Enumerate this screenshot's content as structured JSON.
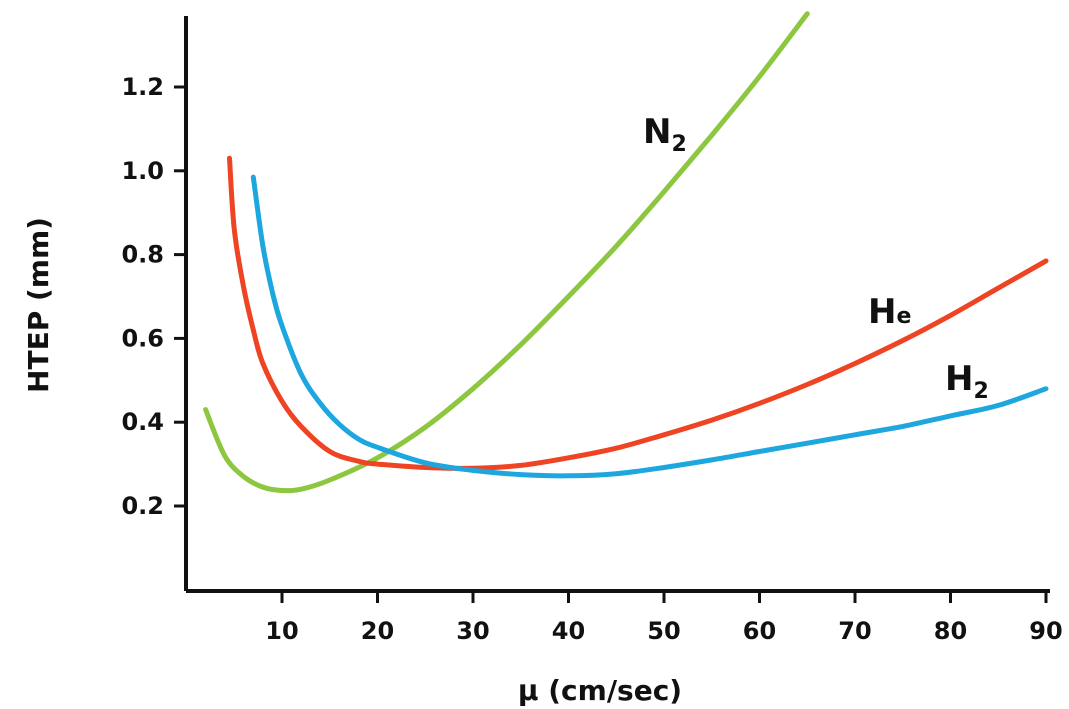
{
  "chart_data": {
    "type": "line",
    "title": "",
    "xlabel": "μ (cm/sec)",
    "ylabel": "HTEP (mm)",
    "xlim": [
      0,
      90
    ],
    "ylim": [
      0,
      1.38
    ],
    "x_ticks": [
      10,
      20,
      30,
      40,
      50,
      60,
      70,
      80,
      90
    ],
    "y_ticks": [
      0.2,
      0.4,
      0.6,
      0.8,
      1.0,
      1.2
    ],
    "x_tick_labels": [
      "10",
      "20",
      "30",
      "40",
      "50",
      "60",
      "70",
      "80",
      "90"
    ],
    "y_tick_labels": [
      "0.2",
      "0.4",
      "0.6",
      "0.8",
      "1.0",
      "1.2"
    ],
    "grid": false,
    "legend": "none",
    "series": [
      {
        "name": "N2",
        "label_main": "N",
        "label_sub": "2",
        "color": "#8dc63f",
        "points": [
          [
            2,
            0.43
          ],
          [
            4,
            0.32
          ],
          [
            6,
            0.27
          ],
          [
            8,
            0.245
          ],
          [
            10,
            0.237
          ],
          [
            12,
            0.24
          ],
          [
            15,
            0.262
          ],
          [
            20,
            0.315
          ],
          [
            25,
            0.388
          ],
          [
            30,
            0.48
          ],
          [
            35,
            0.585
          ],
          [
            40,
            0.7
          ],
          [
            45,
            0.82
          ],
          [
            50,
            0.95
          ],
          [
            55,
            1.085
          ],
          [
            60,
            1.225
          ],
          [
            65,
            1.375
          ]
        ]
      },
      {
        "name": "He",
        "label_main": "H",
        "label_sub": "e",
        "color": "#ee4423",
        "points": [
          [
            4.5,
            1.03
          ],
          [
            5,
            0.86
          ],
          [
            6,
            0.72
          ],
          [
            7,
            0.62
          ],
          [
            8,
            0.54
          ],
          [
            10,
            0.45
          ],
          [
            12,
            0.39
          ],
          [
            15,
            0.33
          ],
          [
            18,
            0.307
          ],
          [
            20,
            0.3
          ],
          [
            25,
            0.292
          ],
          [
            30,
            0.29
          ],
          [
            35,
            0.297
          ],
          [
            40,
            0.315
          ],
          [
            45,
            0.338
          ],
          [
            50,
            0.37
          ],
          [
            55,
            0.405
          ],
          [
            60,
            0.445
          ],
          [
            65,
            0.49
          ],
          [
            70,
            0.54
          ],
          [
            75,
            0.595
          ],
          [
            80,
            0.655
          ],
          [
            85,
            0.72
          ],
          [
            90,
            0.785
          ]
        ]
      },
      {
        "name": "H2",
        "label_main": "H",
        "label_sub": "2",
        "color": "#1ea7df",
        "points": [
          [
            7,
            0.985
          ],
          [
            8,
            0.82
          ],
          [
            9,
            0.71
          ],
          [
            10,
            0.63
          ],
          [
            12,
            0.515
          ],
          [
            14,
            0.445
          ],
          [
            16,
            0.395
          ],
          [
            18,
            0.36
          ],
          [
            20,
            0.34
          ],
          [
            25,
            0.303
          ],
          [
            30,
            0.285
          ],
          [
            35,
            0.275
          ],
          [
            40,
            0.272
          ],
          [
            45,
            0.277
          ],
          [
            50,
            0.292
          ],
          [
            55,
            0.31
          ],
          [
            60,
            0.33
          ],
          [
            65,
            0.35
          ],
          [
            70,
            0.37
          ],
          [
            75,
            0.39
          ],
          [
            80,
            0.415
          ],
          [
            85,
            0.44
          ],
          [
            90,
            0.48
          ]
        ]
      }
    ]
  }
}
